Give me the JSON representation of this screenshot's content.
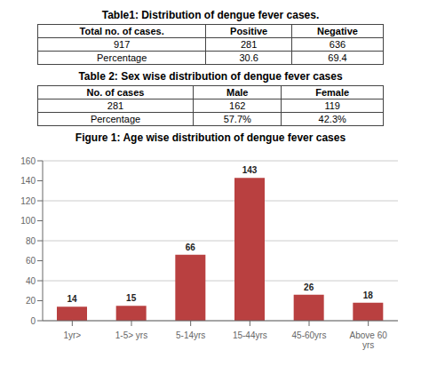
{
  "chart_data": [
    {
      "type": "table",
      "title": "Table1: Distribution of dengue fever cases.",
      "columns": [
        "Total no. of cases.",
        "Positive",
        "Negative"
      ],
      "rows": [
        [
          "917",
          "281",
          "636"
        ],
        [
          "Percentage",
          "30.6",
          "69.4"
        ]
      ]
    },
    {
      "type": "table",
      "title": "Table 2: Sex wise distribution of dengue fever cases",
      "columns": [
        "No. of cases",
        "Male",
        "Female"
      ],
      "rows": [
        [
          "281",
          "162",
          "119"
        ],
        [
          "Percentage",
          "57.7%",
          "42.3%"
        ]
      ]
    },
    {
      "type": "bar",
      "title": "Figure 1: Age wise distribution of dengue fever cases",
      "categories": [
        "1yr>",
        "1-5> yrs",
        "5-14yrs",
        "15-44yrs",
        "45-60yrs",
        "Above 60\nyrs"
      ],
      "values": [
        14,
        15,
        66,
        143,
        26,
        18
      ],
      "color": "#b94040",
      "ylim": [
        0,
        160
      ],
      "yticks": [
        0,
        20,
        40,
        60,
        80,
        100,
        120,
        140,
        160
      ],
      "grid": true,
      "data_labels": true
    }
  ]
}
